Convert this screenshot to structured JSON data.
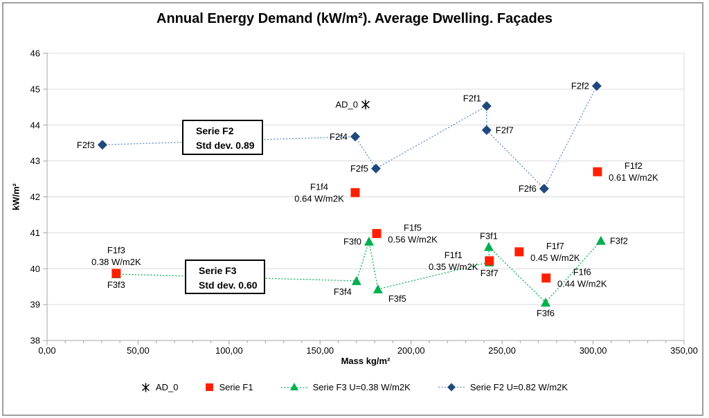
{
  "title": "Annual Energy Demand (kW/m²). Average Dwelling. Façades",
  "chart_data": {
    "type": "scatter",
    "title": "Annual Energy Demand (kW/m²). Average Dwelling. Façades",
    "xlabel": "Mass kg/m²",
    "ylabel": "kW/m²",
    "xlim": [
      0,
      350
    ],
    "ylim": [
      38,
      46
    ],
    "grid": "horizontal",
    "legend_position": "bottom",
    "x_ticks": [
      {
        "value": 0,
        "label": "0,00"
      },
      {
        "value": 50,
        "label": "50,00"
      },
      {
        "value": 100,
        "label": "100,00"
      },
      {
        "value": 150,
        "label": "150,00"
      },
      {
        "value": 200,
        "label": "200,00"
      },
      {
        "value": 250,
        "label": "250,00"
      },
      {
        "value": 300,
        "label": "300,00"
      },
      {
        "value": 350,
        "label": "350,00"
      }
    ],
    "x_minor_tick_step": 10,
    "y_ticks": [
      {
        "value": 38,
        "label": "38"
      },
      {
        "value": 39,
        "label": "39"
      },
      {
        "value": 40,
        "label": "40"
      },
      {
        "value": 41,
        "label": "41"
      },
      {
        "value": 42,
        "label": "42"
      },
      {
        "value": 43,
        "label": "43"
      },
      {
        "value": 44,
        "label": "44"
      },
      {
        "value": 45,
        "label": "45"
      },
      {
        "value": 46,
        "label": "46"
      }
    ],
    "series": [
      {
        "name": "Serie F3 U=0.38 W/m2K",
        "marker": "triangle",
        "color": "#00B050",
        "line": true,
        "line_color": "#00B050",
        "points": [
          {
            "label": "F3f3",
            "x": 38,
            "y": 39.85,
            "label_pos": "below"
          },
          {
            "label": "F3f4",
            "x": 170,
            "y": 39.66,
            "label_pos": "below-left"
          },
          {
            "label": "F3f0",
            "x": 176.9,
            "y": 40.76,
            "label_pos": "left"
          },
          {
            "label": "F3f5",
            "x": 181.8,
            "y": 39.43,
            "label_pos": "below-right"
          },
          {
            "label": "F3f7",
            "x": 243,
            "y": 40.18,
            "label_pos": "below"
          },
          {
            "label": "F3f1",
            "x": 242.7,
            "y": 40.61,
            "label_pos": "above"
          },
          {
            "label": "F3f6",
            "x": 273.9,
            "y": 39.06,
            "label_pos": "below"
          },
          {
            "label": "F3f2",
            "x": 304.3,
            "y": 40.78,
            "label_pos": "right"
          }
        ]
      },
      {
        "name": "Serie F2 U=0.82 W/m2K",
        "marker": "diamond",
        "color": "#1F497D",
        "line": true,
        "line_color": "#5B8BC9",
        "points": [
          {
            "label": "F2f3",
            "x": 30.4,
            "y": 43.45,
            "label_pos": "left"
          },
          {
            "label": "F2f4",
            "x": 169.3,
            "y": 43.68,
            "label_pos": "left"
          },
          {
            "label": "F2f5",
            "x": 180.7,
            "y": 42.79,
            "label_pos": "left"
          },
          {
            "label": "F2f1",
            "x": 241.5,
            "y": 44.53,
            "label_pos": "above-left"
          },
          {
            "label": "F2f7",
            "x": 241.5,
            "y": 43.86,
            "label_pos": "right"
          },
          {
            "label": "F2f6",
            "x": 273.1,
            "y": 42.23,
            "label_pos": "left"
          },
          {
            "label": "F2f2",
            "x": 302,
            "y": 45.09,
            "label_pos": "left"
          }
        ]
      },
      {
        "name": "Serie F1",
        "marker": "square",
        "color": "#FF2000",
        "line": false,
        "points": [
          {
            "label": "F1f3",
            "label2": "0.38 W/m2K",
            "x": 38,
            "y": 39.87,
            "label_pos": "above"
          },
          {
            "label": "F1f4",
            "label2": "0.64 W/m2K",
            "x": 169.3,
            "y": 42.12,
            "label_pos": "left"
          },
          {
            "label": "F1f5",
            "label2": "0.56 W/m2K",
            "x": 181.1,
            "y": 40.98,
            "label_pos": "right"
          },
          {
            "label": "F1f1",
            "label2": "0.35 W/m2K",
            "x": 243,
            "y": 40.22,
            "label_pos": "left"
          },
          {
            "label": "F1f7",
            "label2": "0.45 W/m2K",
            "x": 259.4,
            "y": 40.47,
            "label_pos": "right"
          },
          {
            "label": "F1f6",
            "label2": "0.44 W/m2K",
            "x": 274.2,
            "y": 39.74,
            "label_pos": "right"
          },
          {
            "label": "F1f2",
            "label2": "0.61 W/m2K",
            "x": 302.4,
            "y": 42.7,
            "label_pos": "right"
          }
        ]
      },
      {
        "name": "AD_0",
        "marker": "asterisk",
        "color": "#000000",
        "line": false,
        "points": [
          {
            "label": "AD_0",
            "x": 175,
            "y": 44.57,
            "label_pos": "left"
          }
        ]
      }
    ],
    "annotations": [
      {
        "line1": "Serie F2",
        "line2": "Std dev. 0.89"
      },
      {
        "line1": "Serie F3",
        "line2": "Std dev. 0.60"
      }
    ],
    "legend": [
      {
        "label": "AD_0",
        "marker": "asterisk"
      },
      {
        "label": "Serie F1",
        "marker": "square"
      },
      {
        "label": "Serie F3 U=0.38 W/m2K",
        "marker": "triangle-line"
      },
      {
        "label": "Serie F2 U=0.82 W/m2K",
        "marker": "diamond-line"
      }
    ],
    "colors": {
      "serie_f1": "#FF2000",
      "serie_f2_marker": "#1F497D",
      "serie_f2_line": "#5B8BC9",
      "serie_f3": "#00B050",
      "ad0": "#000000",
      "gridline": "#D9D9D9",
      "axis": "#A6A6A6"
    }
  }
}
